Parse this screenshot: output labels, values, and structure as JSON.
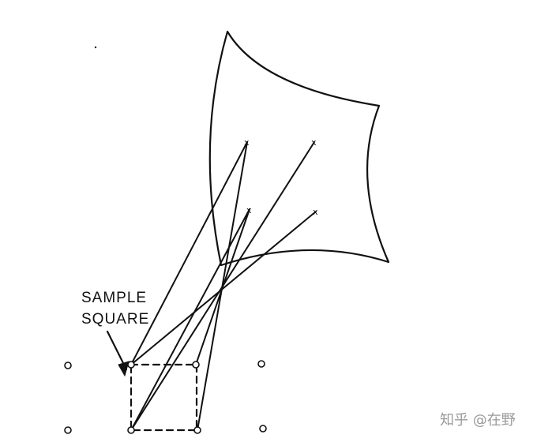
{
  "labels": {
    "sample_line1": "SAMPLE",
    "sample_line2": "SQUARE"
  },
  "markers": {
    "x_glyph": "x"
  },
  "watermark": "知乎 @在野"
}
